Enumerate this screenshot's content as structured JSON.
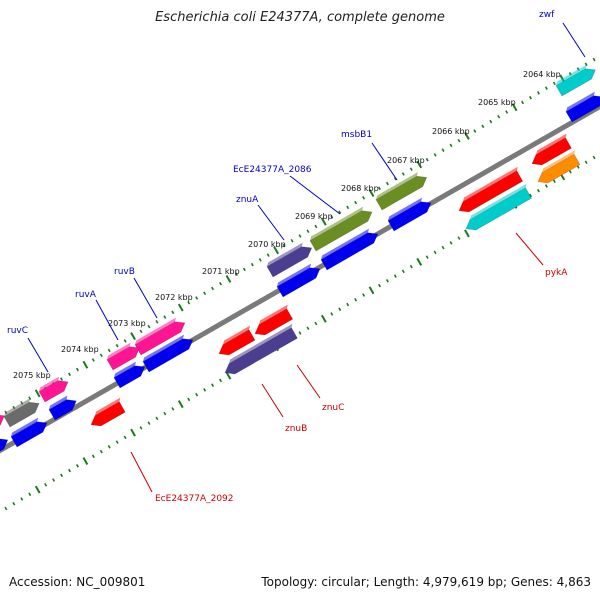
{
  "title": "Escherichia coli E24377A, complete genome",
  "accession_label": "Accession: NC_009801",
  "summary": "Topology: circular; Length: 4,979,619 bp; Genes: 4,863",
  "kbp_ticks": [
    "2064 kbp",
    "2065 kbp",
    "2066 kbp",
    "2067 kbp",
    "2068 kbp",
    "2069 kbp",
    "2070 kbp",
    "2071 kbp",
    "2072 kbp",
    "2073 kbp",
    "2074 kbp",
    "2075 kbp"
  ],
  "genes_top": [
    "zwf",
    "msbB1",
    "EcE24377A_2086",
    "znuA",
    "ruvB",
    "ruvA",
    "ruvC"
  ],
  "genes_bottom": [
    "pykA",
    "znuC",
    "znuB",
    "EcE24377A_2092"
  ],
  "colors": {
    "forward_label": "#0000cc",
    "reverse_label": "#cc0000",
    "tick": "#1a7a1a",
    "backbone": "#808080",
    "red": "#ff0000",
    "blue": "#0000ee",
    "cyan": "#00cccc",
    "olive": "#6b8e23",
    "slate": "#4b3d8f",
    "magenta": "#ff1493",
    "grey": "#6b6b6b",
    "orange": "#ff8c00"
  }
}
